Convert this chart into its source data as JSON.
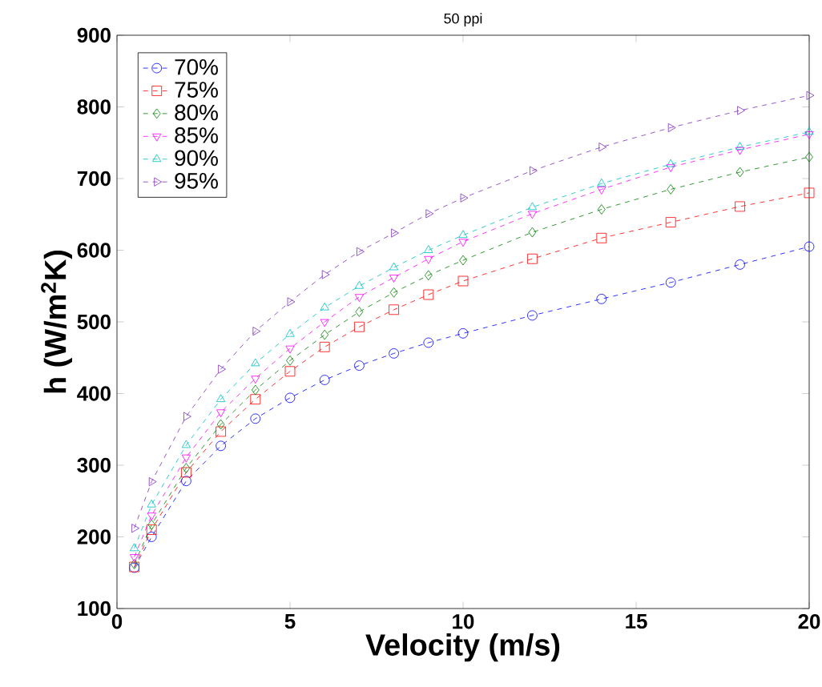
{
  "chart_data": {
    "type": "line",
    "title": "50 ppi",
    "xlabel": "Velocity (m/s)",
    "ylabel": "h (W/m$^{2}$K)",
    "x": [
      0.5,
      1,
      2,
      3,
      4,
      5,
      6,
      7,
      8,
      9,
      10,
      12,
      14,
      16,
      18,
      20
    ],
    "xlim": [
      0,
      20
    ],
    "xticks": [
      0,
      5,
      10,
      15,
      20
    ],
    "ylim": [
      100,
      900
    ],
    "yticks": [
      100,
      200,
      300,
      400,
      500,
      600,
      700,
      800,
      900
    ],
    "legend": "top left",
    "line_style": "dashed",
    "grid": false,
    "series": [
      {
        "name": "70%",
        "color": "#0000ff",
        "marker": "circle",
        "values": [
          157,
          200,
          278,
          327,
          365,
          394,
          419,
          439,
          456,
          471,
          484,
          509,
          532,
          555,
          580,
          605
        ]
      },
      {
        "name": "75%",
        "color": "#ff0000",
        "marker": "square",
        "values": [
          158,
          210,
          290,
          347,
          392,
          431,
          465,
          493,
          517,
          538,
          557,
          588,
          617,
          639,
          661,
          680
        ]
      },
      {
        "name": "80%",
        "color": "#008000",
        "marker": "diamond",
        "values": [
          162,
          217,
          296,
          357,
          405,
          446,
          482,
          514,
          541,
          565,
          586,
          625,
          657,
          685,
          709,
          730
        ]
      },
      {
        "name": "85%",
        "color": "#ff00ff",
        "marker": "triangle-down",
        "values": [
          172,
          230,
          311,
          374,
          421,
          463,
          500,
          535,
          562,
          588,
          612,
          651,
          685,
          716,
          740,
          762
        ]
      },
      {
        "name": "90%",
        "color": "#00bfbf",
        "marker": "triangle",
        "values": [
          184,
          245,
          328,
          392,
          442,
          483,
          520,
          550,
          576,
          600,
          621,
          660,
          693,
          720,
          744,
          765
        ]
      },
      {
        "name": "95%",
        "color": "#7e2fbf",
        "marker": "triangle-right",
        "values": [
          212,
          277,
          368,
          434,
          487,
          528,
          566,
          598,
          624,
          651,
          673,
          711,
          744,
          771,
          795,
          816
        ]
      }
    ]
  }
}
